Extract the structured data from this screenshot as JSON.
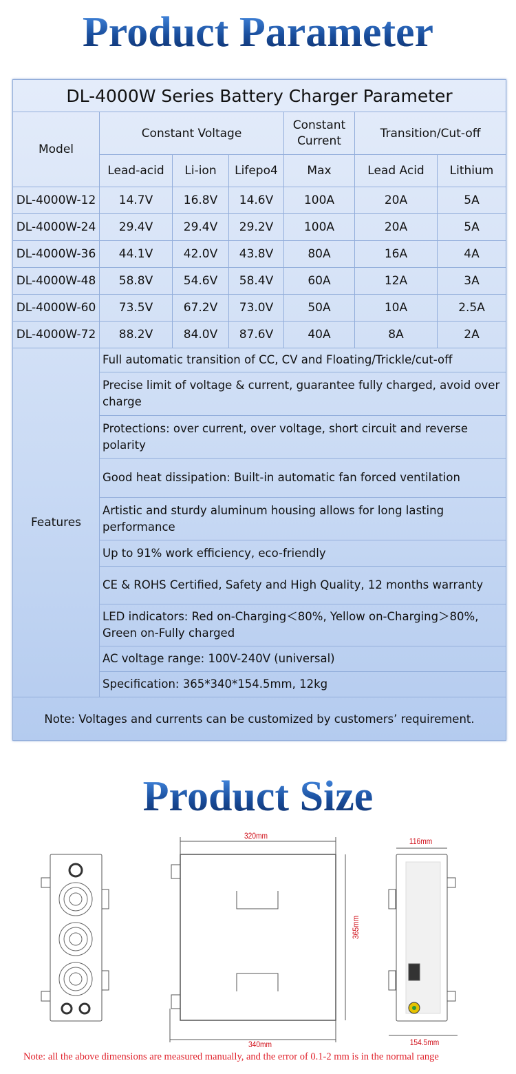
{
  "titles": {
    "parameter": "Product Parameter",
    "size": "Product Size"
  },
  "table": {
    "title": "DL-4000W Series Battery Charger Parameter",
    "headers": {
      "model": "Model",
      "constant_voltage": "Constant Voltage",
      "constant_current": "Constant Current",
      "transition": "Transition/Cut-off",
      "sub": [
        "Lead-acid",
        "Li-ion",
        "Lifepo4",
        "Max",
        "Lead Acid",
        "Lithium"
      ]
    },
    "rows": [
      [
        "DL-4000W-12",
        "14.7V",
        "16.8V",
        "14.6V",
        "100A",
        "20A",
        "5A"
      ],
      [
        "DL-4000W-24",
        "29.4V",
        "29.4V",
        "29.2V",
        "100A",
        "20A",
        "5A"
      ],
      [
        "DL-4000W-36",
        "44.1V",
        "42.0V",
        "43.8V",
        "80A",
        "16A",
        "4A"
      ],
      [
        "DL-4000W-48",
        "58.8V",
        "54.6V",
        "58.4V",
        "60A",
        "12A",
        "3A"
      ],
      [
        "DL-4000W-60",
        "73.5V",
        "67.2V",
        "73.0V",
        "50A",
        "10A",
        "2.5A"
      ],
      [
        "DL-4000W-72",
        "88.2V",
        "84.0V",
        "87.6V",
        "40A",
        "8A",
        "2A"
      ]
    ],
    "features_label": "Features",
    "features": [
      "Full automatic transition of CC, CV and Floating/Trickle/cut-off",
      "Precise limit of voltage & current, guarantee fully charged, avoid over charge",
      "Protections: over current, over voltage, short circuit and reverse polarity",
      "Good heat dissipation: Built-in automatic fan forced ventilation",
      "Artistic and sturdy aluminum housing allows for long lasting performance",
      "Up to 91% work efficiency, eco-friendly",
      "CE & ROHS Certified, Safety and High Quality,  12 months  warranty",
      "LED indicators: Red on-Charging＜80%, Yellow on-Charging＞80%, Green on-Fully charged",
      "AC voltage range: 100V-240V (universal)",
      "Specification: 365*340*154.5mm, 12kg"
    ],
    "note": "Note: Voltages and currents can be customized by customers’ requirement."
  },
  "dimensions": {
    "top_width": "320mm",
    "height": "365mm",
    "bottom_width": "340mm",
    "side_top": "116mm",
    "side_bottom": "154.5mm"
  },
  "footnote": "Note: all the above dimensions are measured manually, and the error of 0.1-2 mm is in the normal range",
  "colors": {
    "title_blue": "#1a4f9e",
    "table_bg": "#c9daf4",
    "dimension_red": "#d0101a"
  }
}
